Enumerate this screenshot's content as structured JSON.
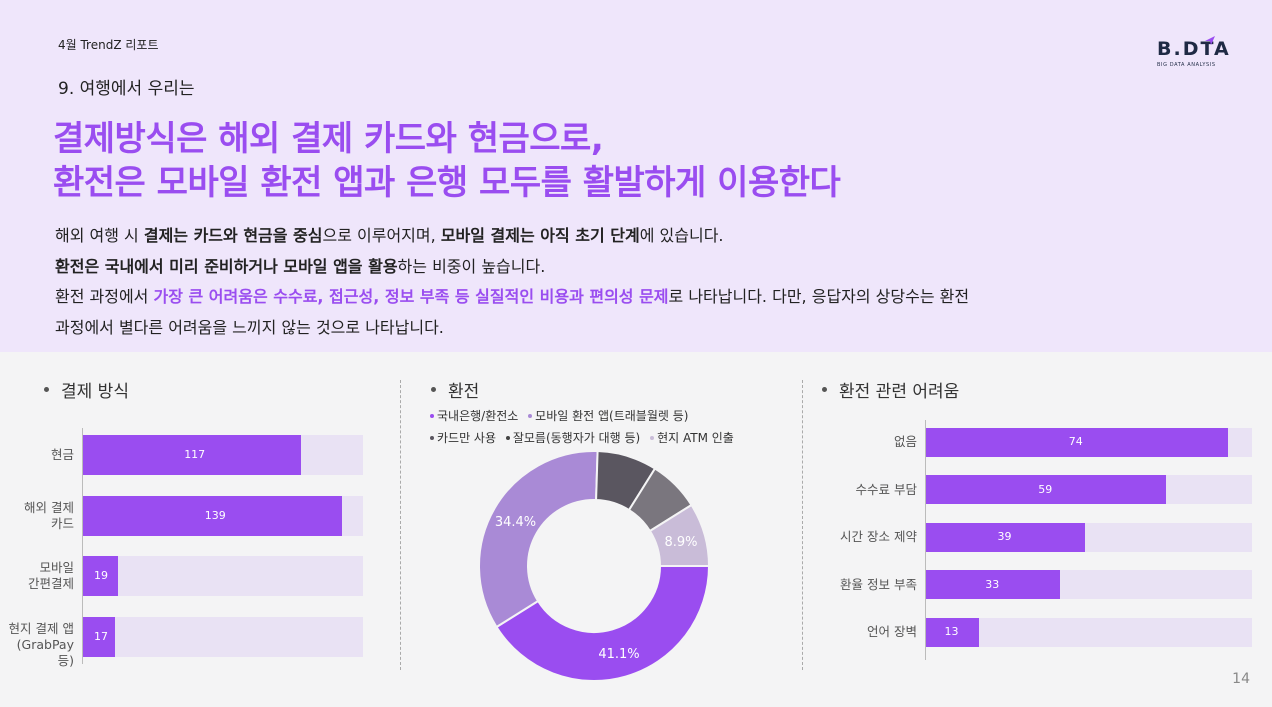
{
  "header": {
    "report_label": "4월 TrendZ 리포트",
    "logo_text": "B.DTA",
    "logo_subtext": "BIG DATA ANALYSIS",
    "section_subtitle": "9. 여행에서 우리는",
    "headline_line1": "결제방식은 해외 결제 카드와 현금으로,",
    "headline_line2": "환전은 모바일 환전 앱과 은행 모두를 활발하게 이용한다"
  },
  "body": {
    "p1_a": "해외 여행 시 ",
    "p1_b": "결제는 카드와 현금을 중심",
    "p1_c": "으로 이루어지며, ",
    "p1_d": "모바일 결제는 아직 초기 단계",
    "p1_e": "에 있습니다.",
    "p2_a": "환전은 국내에서 미리 준비하거나 모바일 앱을 활용",
    "p2_b": "하는 비중이 높습니다.",
    "p3_a": "환전 과정에서 ",
    "p3_b": "가장 큰 어려움은 수수료, 접근성, 정보 부족 등 실질적인 비용과 편의성 문제",
    "p3_c": "로 나타납니다. 다만, 응답자의 상당수는 환전",
    "p4": "과정에서 별다른 어려움을 느끼지 않는 것으로 나타납니다."
  },
  "colors": {
    "accent": "#9a4df0",
    "track": "#e9e2f4",
    "donut": [
      "#9a4df0",
      "#a98ad6",
      "#5a5660",
      "#7a767e",
      "#c9bcd8"
    ]
  },
  "page_number": "14",
  "chart_data": [
    {
      "type": "bar",
      "title": "결제 방식",
      "categories": [
        "현금",
        "해외 결제\n카드",
        "모바일\n간편결제",
        "현지 결제 앱\n(GrabPay 등)"
      ],
      "values": [
        117,
        139,
        19,
        17
      ],
      "xlim": [
        0,
        150
      ]
    },
    {
      "type": "pie",
      "title": "환전",
      "labels": [
        "국내은행/환전소",
        "모바일 환전 앱(트래블월렛 등)",
        "카드만 사용",
        "잘모름(동행자가 대행 등)",
        "현지 ATM 인출"
      ],
      "values": [
        41.1,
        34.4,
        8.4,
        7.2,
        8.9
      ],
      "data_labels": [
        "41.1%",
        "34.4%",
        "",
        "",
        "8.9%"
      ]
    },
    {
      "type": "bar",
      "title": "환전 관련 어려움",
      "categories": [
        "없음",
        "수수료 부담",
        "시간 장소 제약",
        "환율 정보 부족",
        "언어 장벽"
      ],
      "values": [
        74,
        59,
        39,
        33,
        13
      ],
      "xlim": [
        0,
        80
      ]
    }
  ]
}
